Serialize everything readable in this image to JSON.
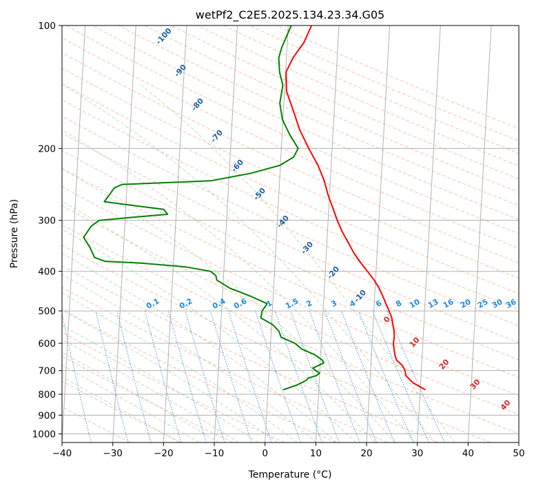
{
  "chart_data": {
    "type": "skew-t",
    "title": "wetPf2_C2E5.2025.134.23.34.G05",
    "xlabel": "Temperature (°C)",
    "ylabel": "Pressure (hPa)",
    "xlim": [
      -40,
      50
    ],
    "ylim": [
      1050,
      100
    ],
    "x_ticks": [
      "−40",
      "−30",
      "−20",
      "−10",
      "0",
      "10",
      "20",
      "30",
      "40",
      "50"
    ],
    "y_ticks": [
      "100",
      "200",
      "300",
      "400",
      "500",
      "600",
      "700",
      "800",
      "900",
      "1000"
    ],
    "grid": true,
    "isotherm_labels": [
      "-100",
      "-90",
      "-80",
      "-70",
      "-60",
      "-50",
      "-40",
      "-30",
      "-20",
      "-10",
      "0",
      "10",
      "20",
      "30",
      "40"
    ],
    "mixing_ratio_labels": [
      "0.1",
      "0.2",
      "0.4",
      "0.6",
      "1",
      "1.5",
      "2",
      "3",
      "4",
      "6",
      "8",
      "10",
      "13",
      "16",
      "20",
      "25",
      "30",
      "36"
    ],
    "series": [
      {
        "name": "",
        "color": "#ff0000",
        "points": [
          {
            "p": 780,
            "t": 31
          },
          {
            "p": 750,
            "t": 28.5
          },
          {
            "p": 720,
            "t": 27
          },
          {
            "p": 700,
            "t": 26.8
          },
          {
            "p": 680,
            "t": 26.2
          },
          {
            "p": 660,
            "t": 25
          },
          {
            "p": 640,
            "t": 24.6
          },
          {
            "p": 620,
            "t": 24.4
          },
          {
            "p": 600,
            "t": 24.2
          },
          {
            "p": 580,
            "t": 24.3
          },
          {
            "p": 560,
            "t": 24.2
          },
          {
            "p": 540,
            "t": 23.9
          },
          {
            "p": 520,
            "t": 23.6
          },
          {
            "p": 500,
            "t": 23
          },
          {
            "p": 480,
            "t": 22.3
          },
          {
            "p": 460,
            "t": 21.6
          },
          {
            "p": 440,
            "t": 20.8
          },
          {
            "p": 420,
            "t": 19.7
          },
          {
            "p": 400,
            "t": 18.3
          },
          {
            "p": 380,
            "t": 16.8
          },
          {
            "p": 360,
            "t": 15.4
          },
          {
            "p": 340,
            "t": 14.2
          },
          {
            "p": 320,
            "t": 12.9
          },
          {
            "p": 300,
            "t": 11.8
          },
          {
            "p": 280,
            "t": 10.8
          },
          {
            "p": 260,
            "t": 9.7
          },
          {
            "p": 240,
            "t": 8.8
          },
          {
            "p": 220,
            "t": 7.4
          },
          {
            "p": 200,
            "t": 5.4
          },
          {
            "p": 180,
            "t": 3.4
          },
          {
            "p": 160,
            "t": 1.8
          },
          {
            "p": 145,
            "t": 0.4
          },
          {
            "p": 130,
            "t": 0.1
          },
          {
            "p": 120,
            "t": 1.3
          },
          {
            "p": 110,
            "t": 3.3
          },
          {
            "p": 100,
            "t": 4.6
          }
        ]
      },
      {
        "name": "",
        "color": "#008000",
        "points": [
          {
            "p": 780,
            "t": 3
          },
          {
            "p": 760,
            "t": 5.6
          },
          {
            "p": 740,
            "t": 7.4
          },
          {
            "p": 730,
            "t": 7.8
          },
          {
            "p": 720,
            "t": 9.4
          },
          {
            "p": 710,
            "t": 10
          },
          {
            "p": 700,
            "t": 9.2
          },
          {
            "p": 690,
            "t": 8.6
          },
          {
            "p": 680,
            "t": 9.7
          },
          {
            "p": 670,
            "t": 10.7
          },
          {
            "p": 660,
            "t": 10.4
          },
          {
            "p": 640,
            "t": 8.8
          },
          {
            "p": 620,
            "t": 6.2
          },
          {
            "p": 600,
            "t": 4.8
          },
          {
            "p": 580,
            "t": 2
          },
          {
            "p": 560,
            "t": 1.5
          },
          {
            "p": 540,
            "t": 0.2
          },
          {
            "p": 520,
            "t": -2.2
          },
          {
            "p": 500,
            "t": -2
          },
          {
            "p": 480,
            "t": -1.1
          },
          {
            "p": 460,
            "t": -4.5
          },
          {
            "p": 440,
            "t": -8.6
          },
          {
            "p": 420,
            "t": -11.3
          },
          {
            "p": 410,
            "t": -11.5
          },
          {
            "p": 400,
            "t": -12.6
          },
          {
            "p": 390,
            "t": -17.6
          },
          {
            "p": 382,
            "t": -26.3
          },
          {
            "p": 378,
            "t": -33.5
          },
          {
            "p": 370,
            "t": -35.6
          },
          {
            "p": 350,
            "t": -36.6
          },
          {
            "p": 330,
            "t": -38
          },
          {
            "p": 310,
            "t": -36.6
          },
          {
            "p": 300,
            "t": -35.1
          },
          {
            "p": 295,
            "t": -28.5
          },
          {
            "p": 290,
            "t": -21.7
          },
          {
            "p": 282,
            "t": -22.5
          },
          {
            "p": 275,
            "t": -29.5
          },
          {
            "p": 270,
            "t": -34.3
          },
          {
            "p": 260,
            "t": -33.4
          },
          {
            "p": 250,
            "t": -32.5
          },
          {
            "p": 245,
            "t": -31
          },
          {
            "p": 240,
            "t": -13.5
          },
          {
            "p": 230,
            "t": -5.7
          },
          {
            "p": 220,
            "t": -0.1
          },
          {
            "p": 210,
            "t": 2.5
          },
          {
            "p": 200,
            "t": 3.3
          },
          {
            "p": 185,
            "t": 1.5
          },
          {
            "p": 170,
            "t": -0.1
          },
          {
            "p": 155,
            "t": -0.8
          },
          {
            "p": 140,
            "t": -0.4
          },
          {
            "p": 130,
            "t": -1.2
          },
          {
            "p": 120,
            "t": -1.5
          },
          {
            "p": 113,
            "t": -1
          },
          {
            "p": 100,
            "t": 0.6
          }
        ]
      }
    ]
  }
}
